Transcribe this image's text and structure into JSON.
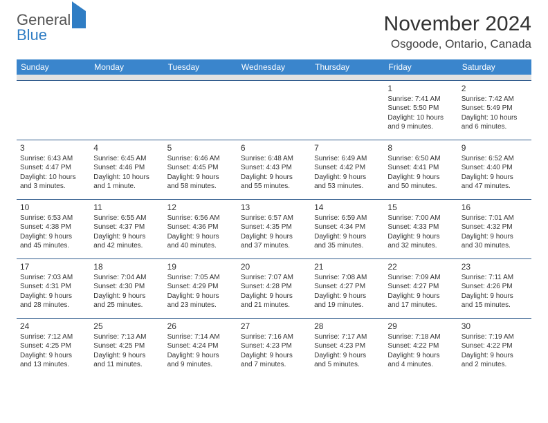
{
  "logo": {
    "line1": "General",
    "line2": "Blue"
  },
  "title": "November 2024",
  "location": "Osgoode, Ontario, Canada",
  "colors": {
    "header_bg": "#3a85cc",
    "header_fg": "#ffffff",
    "rule": "#2f5a8c",
    "sep": "#e2e2e2"
  },
  "day_headers": [
    "Sunday",
    "Monday",
    "Tuesday",
    "Wednesday",
    "Thursday",
    "Friday",
    "Saturday"
  ],
  "weeks": [
    [
      null,
      null,
      null,
      null,
      null,
      {
        "n": "1",
        "sunrise": "Sunrise: 7:41 AM",
        "sunset": "Sunset: 5:50 PM",
        "d1": "Daylight: 10 hours",
        "d2": "and 9 minutes."
      },
      {
        "n": "2",
        "sunrise": "Sunrise: 7:42 AM",
        "sunset": "Sunset: 5:49 PM",
        "d1": "Daylight: 10 hours",
        "d2": "and 6 minutes."
      }
    ],
    [
      {
        "n": "3",
        "sunrise": "Sunrise: 6:43 AM",
        "sunset": "Sunset: 4:47 PM",
        "d1": "Daylight: 10 hours",
        "d2": "and 3 minutes."
      },
      {
        "n": "4",
        "sunrise": "Sunrise: 6:45 AM",
        "sunset": "Sunset: 4:46 PM",
        "d1": "Daylight: 10 hours",
        "d2": "and 1 minute."
      },
      {
        "n": "5",
        "sunrise": "Sunrise: 6:46 AM",
        "sunset": "Sunset: 4:45 PM",
        "d1": "Daylight: 9 hours",
        "d2": "and 58 minutes."
      },
      {
        "n": "6",
        "sunrise": "Sunrise: 6:48 AM",
        "sunset": "Sunset: 4:43 PM",
        "d1": "Daylight: 9 hours",
        "d2": "and 55 minutes."
      },
      {
        "n": "7",
        "sunrise": "Sunrise: 6:49 AM",
        "sunset": "Sunset: 4:42 PM",
        "d1": "Daylight: 9 hours",
        "d2": "and 53 minutes."
      },
      {
        "n": "8",
        "sunrise": "Sunrise: 6:50 AM",
        "sunset": "Sunset: 4:41 PM",
        "d1": "Daylight: 9 hours",
        "d2": "and 50 minutes."
      },
      {
        "n": "9",
        "sunrise": "Sunrise: 6:52 AM",
        "sunset": "Sunset: 4:40 PM",
        "d1": "Daylight: 9 hours",
        "d2": "and 47 minutes."
      }
    ],
    [
      {
        "n": "10",
        "sunrise": "Sunrise: 6:53 AM",
        "sunset": "Sunset: 4:38 PM",
        "d1": "Daylight: 9 hours",
        "d2": "and 45 minutes."
      },
      {
        "n": "11",
        "sunrise": "Sunrise: 6:55 AM",
        "sunset": "Sunset: 4:37 PM",
        "d1": "Daylight: 9 hours",
        "d2": "and 42 minutes."
      },
      {
        "n": "12",
        "sunrise": "Sunrise: 6:56 AM",
        "sunset": "Sunset: 4:36 PM",
        "d1": "Daylight: 9 hours",
        "d2": "and 40 minutes."
      },
      {
        "n": "13",
        "sunrise": "Sunrise: 6:57 AM",
        "sunset": "Sunset: 4:35 PM",
        "d1": "Daylight: 9 hours",
        "d2": "and 37 minutes."
      },
      {
        "n": "14",
        "sunrise": "Sunrise: 6:59 AM",
        "sunset": "Sunset: 4:34 PM",
        "d1": "Daylight: 9 hours",
        "d2": "and 35 minutes."
      },
      {
        "n": "15",
        "sunrise": "Sunrise: 7:00 AM",
        "sunset": "Sunset: 4:33 PM",
        "d1": "Daylight: 9 hours",
        "d2": "and 32 minutes."
      },
      {
        "n": "16",
        "sunrise": "Sunrise: 7:01 AM",
        "sunset": "Sunset: 4:32 PM",
        "d1": "Daylight: 9 hours",
        "d2": "and 30 minutes."
      }
    ],
    [
      {
        "n": "17",
        "sunrise": "Sunrise: 7:03 AM",
        "sunset": "Sunset: 4:31 PM",
        "d1": "Daylight: 9 hours",
        "d2": "and 28 minutes."
      },
      {
        "n": "18",
        "sunrise": "Sunrise: 7:04 AM",
        "sunset": "Sunset: 4:30 PM",
        "d1": "Daylight: 9 hours",
        "d2": "and 25 minutes."
      },
      {
        "n": "19",
        "sunrise": "Sunrise: 7:05 AM",
        "sunset": "Sunset: 4:29 PM",
        "d1": "Daylight: 9 hours",
        "d2": "and 23 minutes."
      },
      {
        "n": "20",
        "sunrise": "Sunrise: 7:07 AM",
        "sunset": "Sunset: 4:28 PM",
        "d1": "Daylight: 9 hours",
        "d2": "and 21 minutes."
      },
      {
        "n": "21",
        "sunrise": "Sunrise: 7:08 AM",
        "sunset": "Sunset: 4:27 PM",
        "d1": "Daylight: 9 hours",
        "d2": "and 19 minutes."
      },
      {
        "n": "22",
        "sunrise": "Sunrise: 7:09 AM",
        "sunset": "Sunset: 4:27 PM",
        "d1": "Daylight: 9 hours",
        "d2": "and 17 minutes."
      },
      {
        "n": "23",
        "sunrise": "Sunrise: 7:11 AM",
        "sunset": "Sunset: 4:26 PM",
        "d1": "Daylight: 9 hours",
        "d2": "and 15 minutes."
      }
    ],
    [
      {
        "n": "24",
        "sunrise": "Sunrise: 7:12 AM",
        "sunset": "Sunset: 4:25 PM",
        "d1": "Daylight: 9 hours",
        "d2": "and 13 minutes."
      },
      {
        "n": "25",
        "sunrise": "Sunrise: 7:13 AM",
        "sunset": "Sunset: 4:25 PM",
        "d1": "Daylight: 9 hours",
        "d2": "and 11 minutes."
      },
      {
        "n": "26",
        "sunrise": "Sunrise: 7:14 AM",
        "sunset": "Sunset: 4:24 PM",
        "d1": "Daylight: 9 hours",
        "d2": "and 9 minutes."
      },
      {
        "n": "27",
        "sunrise": "Sunrise: 7:16 AM",
        "sunset": "Sunset: 4:23 PM",
        "d1": "Daylight: 9 hours",
        "d2": "and 7 minutes."
      },
      {
        "n": "28",
        "sunrise": "Sunrise: 7:17 AM",
        "sunset": "Sunset: 4:23 PM",
        "d1": "Daylight: 9 hours",
        "d2": "and 5 minutes."
      },
      {
        "n": "29",
        "sunrise": "Sunrise: 7:18 AM",
        "sunset": "Sunset: 4:22 PM",
        "d1": "Daylight: 9 hours",
        "d2": "and 4 minutes."
      },
      {
        "n": "30",
        "sunrise": "Sunrise: 7:19 AM",
        "sunset": "Sunset: 4:22 PM",
        "d1": "Daylight: 9 hours",
        "d2": "and 2 minutes."
      }
    ]
  ]
}
